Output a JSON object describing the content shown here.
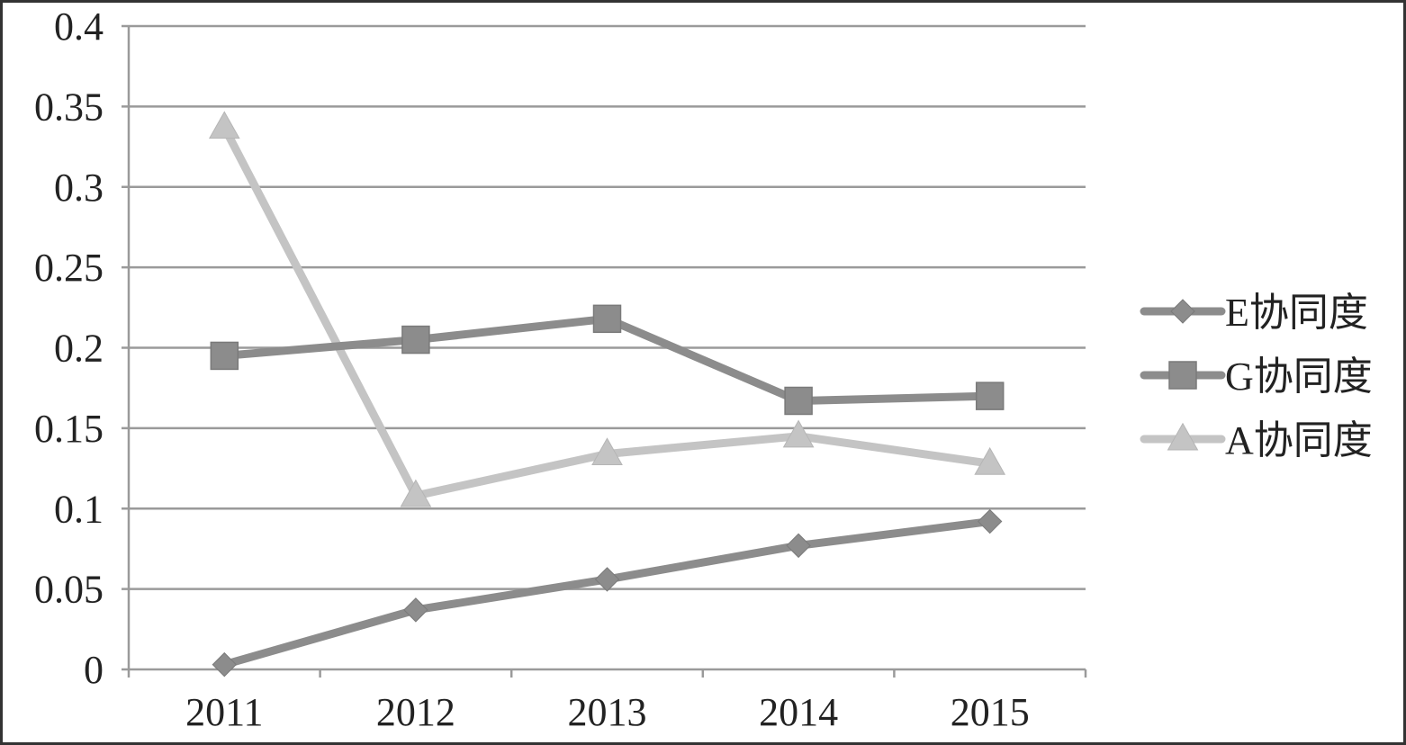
{
  "chart_data": {
    "type": "line",
    "title": "",
    "xlabel": "",
    "ylabel": "",
    "categories": [
      "2011",
      "2012",
      "2013",
      "2014",
      "2015"
    ],
    "ylim": [
      0,
      0.4
    ],
    "yticks": [
      "0",
      "0.05",
      "0.1",
      "0.15",
      "0.2",
      "0.25",
      "0.3",
      "0.35",
      "0.4"
    ],
    "grid": true,
    "legend_position": "right",
    "series": [
      {
        "name": "E协同度",
        "marker": "diamond",
        "color": "#8c8c8c",
        "values": [
          0.003,
          0.037,
          0.056,
          0.077,
          0.092
        ]
      },
      {
        "name": "G协同度",
        "marker": "square",
        "color": "#8c8c8c",
        "values": [
          0.195,
          0.205,
          0.218,
          0.167,
          0.17
        ]
      },
      {
        "name": "A协同度",
        "marker": "triangle",
        "color": "#c4c4c4",
        "values": [
          0.337,
          0.108,
          0.134,
          0.145,
          0.128
        ]
      }
    ]
  }
}
